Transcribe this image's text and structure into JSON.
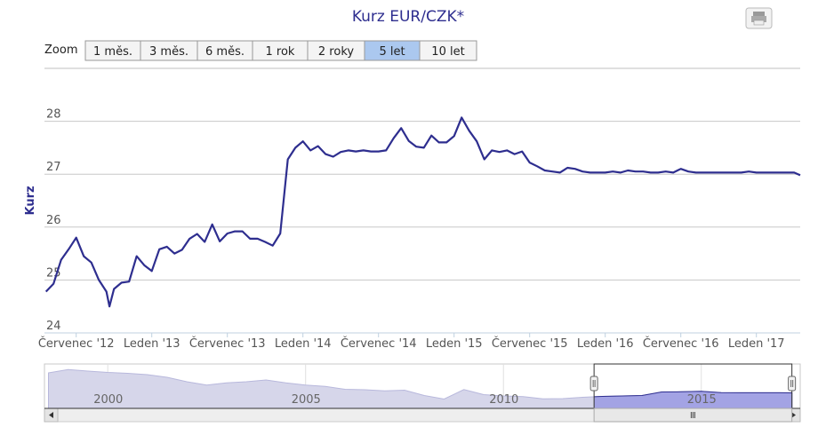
{
  "zoom": {
    "label": "Zoom",
    "buttons": [
      "1 měs.",
      "3 měs.",
      "6 měs.",
      "1 rok",
      "2 roky",
      "5 let",
      "10 let"
    ],
    "selected": 5
  },
  "chart_data": [
    {
      "type": "line",
      "title": "Kurz EUR/CZK*",
      "y_label": "Kurz",
      "color": "#2e2e8f",
      "grid": true,
      "xlim": [
        2012.29,
        2017.29
      ],
      "ylim": [
        24,
        29
      ],
      "yticks": [
        24,
        25,
        26,
        27,
        28
      ],
      "xticks": [
        {
          "value": 2012.5,
          "label": "Červenec '12"
        },
        {
          "value": 2013,
          "label": "Leden '13"
        },
        {
          "value": 2013.5,
          "label": "Červenec '13"
        },
        {
          "value": 2014,
          "label": "Leden '14"
        },
        {
          "value": 2014.5,
          "label": "Červenec '14"
        },
        {
          "value": 2015,
          "label": "Leden '15"
        },
        {
          "value": 2015.5,
          "label": "Červenec '15"
        },
        {
          "value": 2016,
          "label": "Leden '16"
        },
        {
          "value": 2016.5,
          "label": "Červenec '16"
        },
        {
          "value": 2017,
          "label": "Leden '17"
        }
      ],
      "x": [
        2012.3,
        2012.35,
        2012.4,
        2012.45,
        2012.5,
        2012.55,
        2012.6,
        2012.65,
        2012.7,
        2012.72,
        2012.75,
        2012.8,
        2012.85,
        2012.9,
        2012.95,
        2013.0,
        2013.05,
        2013.1,
        2013.15,
        2013.2,
        2013.25,
        2013.3,
        2013.35,
        2013.4,
        2013.45,
        2013.5,
        2013.55,
        2013.6,
        2013.65,
        2013.7,
        2013.75,
        2013.8,
        2013.85,
        2013.9,
        2013.95,
        2014.0,
        2014.05,
        2014.1,
        2014.15,
        2014.2,
        2014.25,
        2014.3,
        2014.35,
        2014.4,
        2014.45,
        2014.5,
        2014.55,
        2014.6,
        2014.65,
        2014.7,
        2014.75,
        2014.8,
        2014.85,
        2014.9,
        2014.95,
        2015.0,
        2015.05,
        2015.1,
        2015.15,
        2015.2,
        2015.25,
        2015.3,
        2015.35,
        2015.4,
        2015.45,
        2015.5,
        2015.55,
        2015.6,
        2015.65,
        2015.7,
        2015.75,
        2015.8,
        2015.85,
        2015.9,
        2015.95,
        2016.0,
        2016.05,
        2016.1,
        2016.15,
        2016.2,
        2016.25,
        2016.3,
        2016.35,
        2016.4,
        2016.45,
        2016.5,
        2016.55,
        2016.6,
        2016.65,
        2016.7,
        2016.75,
        2016.8,
        2016.85,
        2016.9,
        2016.95,
        2017.0,
        2017.05,
        2017.1,
        2017.15,
        2017.2,
        2017.25,
        2017.29
      ],
      "values": [
        24.78,
        24.93,
        25.38,
        25.58,
        25.8,
        25.45,
        25.33,
        25.0,
        24.78,
        24.5,
        24.83,
        24.95,
        24.97,
        25.45,
        25.28,
        25.17,
        25.58,
        25.63,
        25.5,
        25.57,
        25.78,
        25.87,
        25.72,
        26.05,
        25.73,
        25.88,
        25.92,
        25.92,
        25.78,
        25.78,
        25.72,
        25.65,
        25.88,
        27.28,
        27.5,
        27.62,
        27.45,
        27.53,
        27.38,
        27.33,
        27.42,
        27.45,
        27.43,
        27.45,
        27.43,
        27.43,
        27.45,
        27.68,
        27.87,
        27.63,
        27.52,
        27.5,
        27.73,
        27.6,
        27.6,
        27.72,
        28.07,
        27.82,
        27.62,
        27.28,
        27.45,
        27.42,
        27.45,
        27.38,
        27.43,
        27.22,
        27.15,
        27.07,
        27.05,
        27.03,
        27.12,
        27.1,
        27.05,
        27.03,
        27.03,
        27.03,
        27.05,
        27.03,
        27.07,
        27.05,
        27.05,
        27.03,
        27.03,
        27.05,
        27.03,
        27.1,
        27.05,
        27.03,
        27.03,
        27.03,
        27.03,
        27.03,
        27.03,
        27.03,
        27.05,
        27.03,
        27.03,
        27.03,
        27.03,
        27.03,
        27.03,
        26.98
      ]
    },
    {
      "type": "area",
      "color": "#d6d6ea",
      "xlim": [
        1998.4,
        2017.5
      ],
      "ylim": [
        20,
        40
      ],
      "xticks": [
        2000,
        2005,
        2010,
        2015
      ],
      "x": [
        1998.5,
        1999,
        1999.5,
        2000,
        2000.5,
        2001,
        2001.5,
        2002,
        2002.5,
        2003,
        2003.5,
        2004,
        2004.5,
        2005,
        2005.5,
        2006,
        2006.5,
        2007,
        2007.5,
        2008,
        2008.5,
        2009,
        2009.5,
        2010,
        2010.5,
        2011,
        2011.5,
        2012,
        2012.5,
        2013,
        2013.5,
        2014,
        2014.5,
        2015,
        2015.5,
        2016,
        2016.5,
        2017,
        2017.3
      ],
      "values": [
        36.0,
        37.5,
        36.8,
        36.2,
        35.8,
        35.2,
        34.0,
        32.0,
        30.5,
        31.5,
        32.0,
        32.8,
        31.5,
        30.5,
        29.9,
        28.6,
        28.4,
        27.9,
        28.2,
        25.8,
        24.2,
        28.5,
        26.2,
        25.6,
        25.3,
        24.3,
        24.4,
        25.0,
        25.4,
        25.6,
        25.8,
        27.4,
        27.5,
        27.7,
        27.1,
        27.03,
        27.05,
        27.02,
        27.0
      ]
    }
  ]
}
